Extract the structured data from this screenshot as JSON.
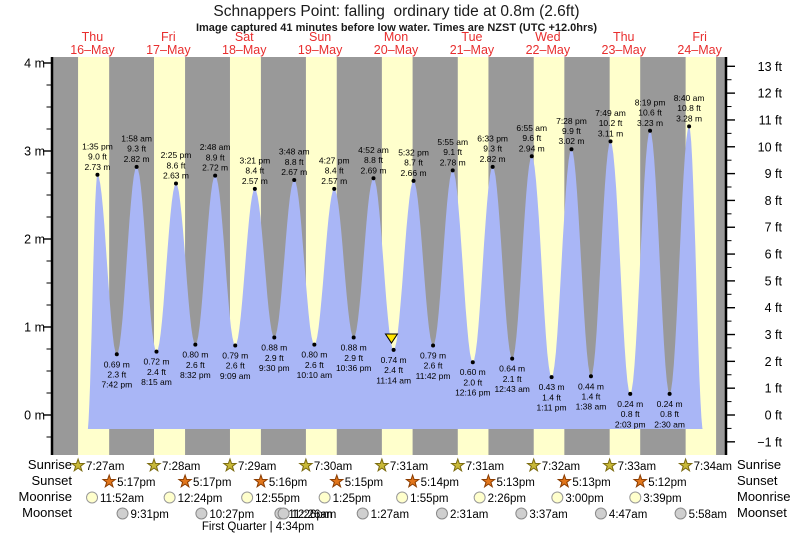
{
  "title": "Schnappers Point: falling  ordinary tide at 0.8m (2.6ft)",
  "subtitle": "Image captured 41 minutes before low water. Times are NZST (UTC +12.0hrs)",
  "row_labels": {
    "sunrise": "Sunrise",
    "sunset": "Sunset",
    "moonrise": "Moonrise",
    "moonset": "Moonset"
  },
  "moon_phase": "First Quarter | 4:34pm",
  "days": [
    {
      "name": "Thu",
      "date": "16–May",
      "sunrise": "7:27am",
      "sunset": "5:17pm",
      "moonrise": "11:52am",
      "moonset": "9:31pm"
    },
    {
      "name": "Fri",
      "date": "17–May",
      "sunrise": "7:28am",
      "sunset": "5:17pm",
      "moonrise": "12:24pm",
      "moonset": "10:27pm"
    },
    {
      "name": "Sat",
      "date": "18–May",
      "sunrise": "7:29am",
      "sunset": "5:16pm",
      "moonrise": "12:55pm",
      "moonset": "11:26pm"
    },
    {
      "name": "Sun",
      "date": "19–May",
      "sunrise": "7:30am",
      "sunset": "5:15pm",
      "moonrise": "1:25pm",
      "moonset": "12:26am"
    },
    {
      "name": "Mon",
      "date": "20–May",
      "sunrise": "7:31am",
      "sunset": "5:14pm",
      "moonrise": "1:55pm",
      "moonset": "1:27am"
    },
    {
      "name": "Tue",
      "date": "21–May",
      "sunrise": "7:31am",
      "sunset": "5:13pm",
      "moonrise": "2:26pm",
      "moonset": "2:31am"
    },
    {
      "name": "Wed",
      "date": "22–May",
      "sunrise": "7:32am",
      "sunset": "5:13pm",
      "moonrise": "3:00pm",
      "moonset": "3:37am"
    },
    {
      "name": "Thu",
      "date": "23–May",
      "sunrise": "7:33am",
      "sunset": "5:12pm",
      "moonrise": "3:39pm",
      "moonset": "4:47am"
    },
    {
      "name": "Fri",
      "date": "24–May",
      "sunrise": "7:34am",
      "sunset": null,
      "moonrise": null,
      "moonset": "5:58am"
    }
  ],
  "chart_data": {
    "type": "area",
    "y_left_unit": "m",
    "y_right_unit": "ft",
    "y_left_ticks": [
      0,
      1,
      2,
      3,
      4
    ],
    "y_right_ticks": [
      -1,
      0,
      1,
      2,
      3,
      4,
      5,
      6,
      7,
      8,
      9,
      10,
      11,
      12,
      13
    ],
    "ylim_m": [
      -0.45,
      4.1
    ],
    "tide_events": [
      {
        "day": 0,
        "time": "1:35 pm",
        "type": "high",
        "m": 2.73,
        "ft": 9.0
      },
      {
        "day": 0,
        "time": "7:42 pm",
        "type": "low",
        "m": 0.69,
        "ft": 2.3
      },
      {
        "day": 1,
        "time": "1:58 am",
        "type": "high",
        "m": 2.82,
        "ft": 9.3
      },
      {
        "day": 1,
        "time": "8:15 am",
        "type": "low",
        "m": 0.72,
        "ft": 2.4
      },
      {
        "day": 1,
        "time": "2:25 pm",
        "type": "high",
        "m": 2.63,
        "ft": 8.6
      },
      {
        "day": 1,
        "time": "8:32 pm",
        "type": "low",
        "m": 0.8,
        "ft": 2.6
      },
      {
        "day": 2,
        "time": "2:48 am",
        "type": "high",
        "m": 2.72,
        "ft": 8.9
      },
      {
        "day": 2,
        "time": "9:09 am",
        "type": "low",
        "m": 0.79,
        "ft": 2.6
      },
      {
        "day": 2,
        "time": "3:21 pm",
        "type": "high",
        "m": 2.57,
        "ft": 8.4
      },
      {
        "day": 2,
        "time": "9:30 pm",
        "type": "low",
        "m": 0.88,
        "ft": 2.9
      },
      {
        "day": 3,
        "time": "3:48 am",
        "type": "high",
        "m": 2.67,
        "ft": 8.8
      },
      {
        "day": 3,
        "time": "10:10 am",
        "type": "low",
        "m": 0.8,
        "ft": 2.6
      },
      {
        "day": 3,
        "time": "4:27 pm",
        "type": "high",
        "m": 2.57,
        "ft": 8.4
      },
      {
        "day": 3,
        "time": "10:36 pm",
        "type": "low",
        "m": 0.88,
        "ft": 2.9
      },
      {
        "day": 4,
        "time": "4:52 am",
        "type": "high",
        "m": 2.69,
        "ft": 8.8
      },
      {
        "day": 4,
        "time": "11:14 am",
        "type": "low",
        "m": 0.74,
        "ft": 2.4
      },
      {
        "day": 4,
        "time": "5:32 pm",
        "type": "high",
        "m": 2.66,
        "ft": 8.7
      },
      {
        "day": 4,
        "time": "11:42 pm",
        "type": "low",
        "m": 0.79,
        "ft": 2.6
      },
      {
        "day": 5,
        "time": "5:55 am",
        "type": "high",
        "m": 2.78,
        "ft": 9.1
      },
      {
        "day": 5,
        "time": "12:16 pm",
        "type": "low",
        "m": 0.6,
        "ft": 2.0
      },
      {
        "day": 5,
        "time": "6:33 pm",
        "type": "high",
        "m": 2.82,
        "ft": 9.3
      },
      {
        "day": 6,
        "time": "12:43 am",
        "type": "low",
        "m": 0.64,
        "ft": 2.1
      },
      {
        "day": 6,
        "time": "6:55 am",
        "type": "high",
        "m": 2.94,
        "ft": 9.6
      },
      {
        "day": 6,
        "time": "1:11 pm",
        "type": "low",
        "m": 0.43,
        "ft": 1.4
      },
      {
        "day": 6,
        "time": "7:28 pm",
        "type": "high",
        "m": 3.02,
        "ft": 9.9
      },
      {
        "day": 7,
        "time": "1:38 am",
        "type": "low",
        "m": 0.44,
        "ft": 1.4
      },
      {
        "day": 7,
        "time": "7:49 am",
        "type": "high",
        "m": 3.11,
        "ft": 10.2
      },
      {
        "day": 7,
        "time": "2:03 pm",
        "type": "low",
        "m": 0.24,
        "ft": 0.8
      },
      {
        "day": 7,
        "time": "8:19 pm",
        "type": "high",
        "m": 3.23,
        "ft": 10.6
      },
      {
        "day": 8,
        "time": "2:30 am",
        "type": "low",
        "m": 0.24,
        "ft": 0.8
      },
      {
        "day": 8,
        "time": "8:40 am",
        "type": "high",
        "m": 3.28,
        "ft": 10.8
      }
    ],
    "capture_marker": {
      "day": 4,
      "time": "10:33 am"
    }
  },
  "colors": {
    "night_band": "#999999",
    "day_band": "#ffffcc",
    "tide_fill": "#a9b6f6",
    "day_label": "#e82e2e",
    "marker_fill": "#ffe500",
    "sunrise_star": "#c9b938",
    "sunrise_star_stroke": "#7a6a10",
    "sunset_star": "#e2761b",
    "sunset_star_stroke": "#8a3c00",
    "moonrise_circle": "#ffffcc",
    "moonrise_circle_stroke": "#999999",
    "moonset_circle": "#cfcfcf",
    "moonset_circle_stroke": "#8a8a8a"
  }
}
